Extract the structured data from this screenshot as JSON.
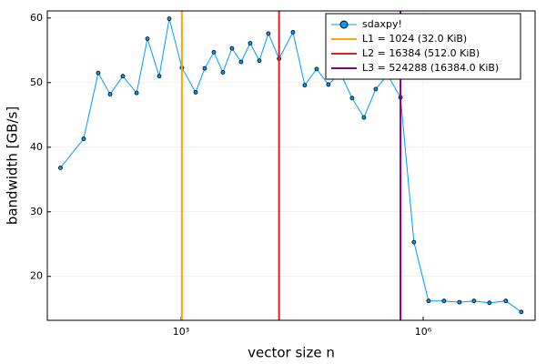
{
  "chart_data": {
    "type": "line",
    "xlabel": "vector size n",
    "ylabel": "bandwidth [GB/s]",
    "xscale": "log",
    "grid": true,
    "legend": "top-right",
    "xlim": [
      22,
      24400000
    ],
    "ylim": [
      13.2,
      61.1
    ],
    "xticks": [
      {
        "value": 1000,
        "label": "10³"
      },
      {
        "value": 1000000,
        "label": "10⁶"
      }
    ],
    "yticks": [
      20,
      30,
      40,
      50,
      60
    ],
    "series": [
      {
        "name": "sdaxpy!",
        "color": "#009AFA",
        "x": [
          32,
          62,
          94,
          132,
          190,
          281,
          383,
          536,
          714,
          1024,
          1515,
          1964,
          2547,
          3301,
          4278,
          5546,
          7191,
          9325,
          12080,
          16384,
          24360,
          34120,
          47860,
          67000,
          93970,
          131700,
          184500,
          258800,
          362300,
          524288,
          769000,
          1166000,
          1813000,
          2818000,
          4266000,
          6637000,
          10590000,
          16450000
        ],
        "values": [
          36.8,
          41.3,
          51.5,
          48.2,
          51.0,
          48.4,
          56.8,
          51.0,
          59.9,
          52.3,
          48.5,
          52.2,
          54.7,
          51.6,
          55.3,
          53.2,
          56.1,
          53.4,
          57.6,
          53.7,
          57.8,
          49.6,
          52.1,
          49.7,
          51.5,
          47.6,
          44.6,
          49.0,
          51.2,
          47.7,
          25.3,
          16.2,
          16.2,
          16.0,
          16.2,
          15.9,
          16.2,
          14.5
        ]
      }
    ],
    "vlines": [
      {
        "name": "L1 = 1024 (32.0 KiB)",
        "color": "#FFA500",
        "x": 1024
      },
      {
        "name": "L2 = 16384 (512.0 KiB)",
        "color": "#E0201B",
        "x": 16384
      },
      {
        "name": "L3 = 524288 (16384.0 KiB)",
        "color": "#800080",
        "x": 524288
      }
    ]
  }
}
